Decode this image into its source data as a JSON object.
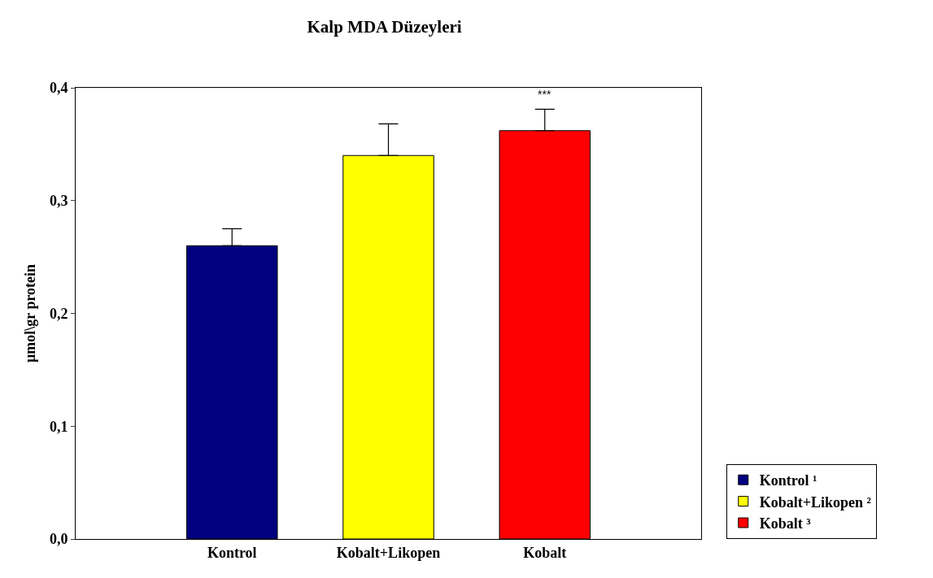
{
  "chart_data": {
    "type": "bar",
    "title": "Kalp MDA Düzeyleri",
    "ylabel": "µmol\\gr protein",
    "categories": [
      "Kontrol",
      "Kobalt+Likopen",
      "Kobalt"
    ],
    "series": [
      {
        "name": "Kontrol ¹",
        "color": "#000080",
        "values": [
          0.26,
          null,
          null
        ],
        "errors": [
          [
            0.26,
            0.275
          ],
          null,
          null
        ]
      },
      {
        "name": "Kobalt+Likopen ²",
        "color": "#ffff00",
        "values": [
          null,
          0.34,
          null
        ],
        "errors": [
          null,
          [
            0.34,
            0.368
          ],
          null
        ]
      },
      {
        "name": "Kobalt ³",
        "color": "#ff0000",
        "values": [
          null,
          null,
          0.362
        ],
        "errors": [
          null,
          null,
          [
            0.362,
            0.381
          ]
        ]
      }
    ],
    "ylim": [
      0,
      0.4
    ],
    "yticks": [
      {
        "value": 0,
        "label": "0,0"
      },
      {
        "value": 0.1,
        "label": "0,1"
      },
      {
        "value": 0.2,
        "label": "0,2"
      },
      {
        "value": 0.3,
        "label": "0,3"
      },
      {
        "value": 0.4,
        "label": "0,4"
      }
    ],
    "annotations": [
      {
        "text": "***",
        "x": "Kobalt",
        "y": 0.381
      }
    ],
    "grid": false,
    "legend": "bottom right"
  }
}
